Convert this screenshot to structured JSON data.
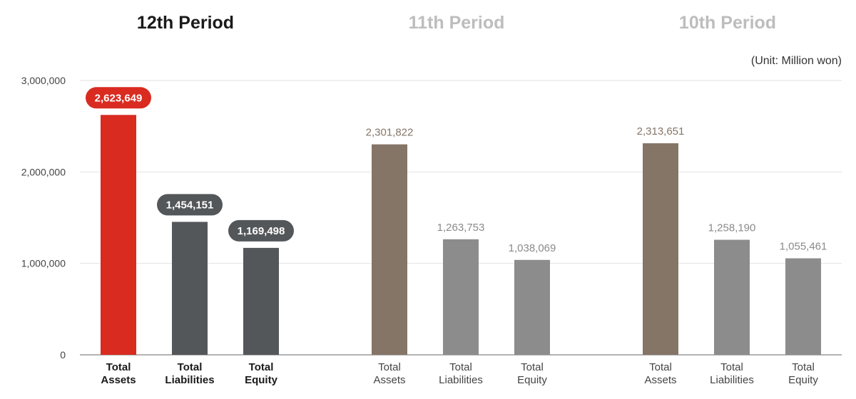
{
  "tabs": [
    {
      "label": "12th Period",
      "active": true
    },
    {
      "label": "11th Period",
      "active": false
    },
    {
      "label": "10th Period",
      "active": false
    }
  ],
  "unit": "(Unit: Million won)",
  "colors": {
    "active_assets": "#d92b20",
    "active_other": "#54575a",
    "inactive_assets": "#857567",
    "inactive_other": "#8c8c8c",
    "value_text_inactive": "#8a8a8a"
  },
  "chart_data": {
    "type": "bar",
    "ylim": [
      0,
      3000000
    ],
    "yticks": [
      {
        "value": 0,
        "label": "0"
      },
      {
        "value": 1000000,
        "label": "1,000,000"
      },
      {
        "value": 2000000,
        "label": "2,000,000"
      },
      {
        "value": 3000000,
        "label": "3,000,000"
      }
    ],
    "groups": [
      {
        "name": "12th Period",
        "active": true,
        "bars": [
          {
            "category": "Total Assets",
            "label_lines": [
              "Total",
              "Assets"
            ],
            "value": 2623649,
            "value_label": "2,623,649"
          },
          {
            "category": "Total Liabilities",
            "label_lines": [
              "Total",
              "Liabilities"
            ],
            "value": 1454151,
            "value_label": "1,454,151"
          },
          {
            "category": "Total Equity",
            "label_lines": [
              "Total",
              "Equity"
            ],
            "value": 1169498,
            "value_label": "1,169,498"
          }
        ]
      },
      {
        "name": "11th Period",
        "active": false,
        "bars": [
          {
            "category": "Total Assets",
            "label_lines": [
              "Total",
              "Assets"
            ],
            "value": 2301822,
            "value_label": "2,301,822"
          },
          {
            "category": "Total Liabilities",
            "label_lines": [
              "Total",
              "Liabilities"
            ],
            "value": 1263753,
            "value_label": "1,263,753"
          },
          {
            "category": "Total Equity",
            "label_lines": [
              "Total",
              "Equity"
            ],
            "value": 1038069,
            "value_label": "1,038,069"
          }
        ]
      },
      {
        "name": "10th Period",
        "active": false,
        "bars": [
          {
            "category": "Total Assets",
            "label_lines": [
              "Total",
              "Assets"
            ],
            "value": 2313651,
            "value_label": "2,313,651"
          },
          {
            "category": "Total Liabilities",
            "label_lines": [
              "Total",
              "Liabilities"
            ],
            "value": 1258190,
            "value_label": "1,258,190"
          },
          {
            "category": "Total Equity",
            "label_lines": [
              "Total",
              "Equity"
            ],
            "value": 1055461,
            "value_label": "1,055,461"
          }
        ]
      }
    ]
  }
}
